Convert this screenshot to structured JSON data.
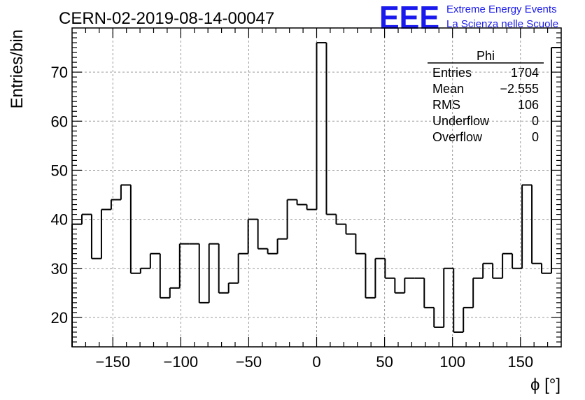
{
  "header": {
    "title": "CERN-02-2019-08-14-00047",
    "logo": {
      "text": "EEE",
      "line1": "Extreme Energy Events",
      "line2": "La Scienza nelle Scuole",
      "color": "#1a1aee"
    }
  },
  "stats": {
    "name": "Phi",
    "rows": [
      {
        "label": "Entries",
        "value": "1704"
      },
      {
        "label": "Mean",
        "value": "−2.555"
      },
      {
        "label": "RMS",
        "value": "106"
      },
      {
        "label": "Underflow",
        "value": "0"
      },
      {
        "label": "Overflow",
        "value": "0"
      }
    ]
  },
  "chart_data": {
    "type": "histogram",
    "title": "CERN-02-2019-08-14-00047",
    "xlabel": "ϕ [°]",
    "ylabel": "Entries/bin",
    "xlim": [
      -180,
      180
    ],
    "ylim": [
      14,
      79
    ],
    "bin_width": 7.2,
    "xticks": [
      -150,
      -100,
      -50,
      0,
      50,
      100,
      150
    ],
    "xtick_labels": [
      "−150",
      "−100",
      "−50",
      "0",
      "50",
      "100",
      "150"
    ],
    "yticks": [
      20,
      30,
      40,
      50,
      60,
      70
    ],
    "ytick_labels": [
      "20",
      "30",
      "40",
      "50",
      "60",
      "70"
    ],
    "grid": true,
    "values": [
      39,
      41,
      32,
      42,
      44,
      47,
      29,
      30,
      33,
      24,
      26,
      35,
      35,
      23,
      35,
      25,
      27,
      33,
      40,
      34,
      33,
      36,
      44,
      43,
      42,
      76,
      41,
      39,
      37,
      33,
      24,
      32,
      28,
      25,
      28,
      28,
      22,
      18,
      30,
      17,
      22,
      28,
      31,
      28,
      33,
      30,
      47,
      31,
      29,
      75
    ],
    "line_color": "#000000"
  }
}
